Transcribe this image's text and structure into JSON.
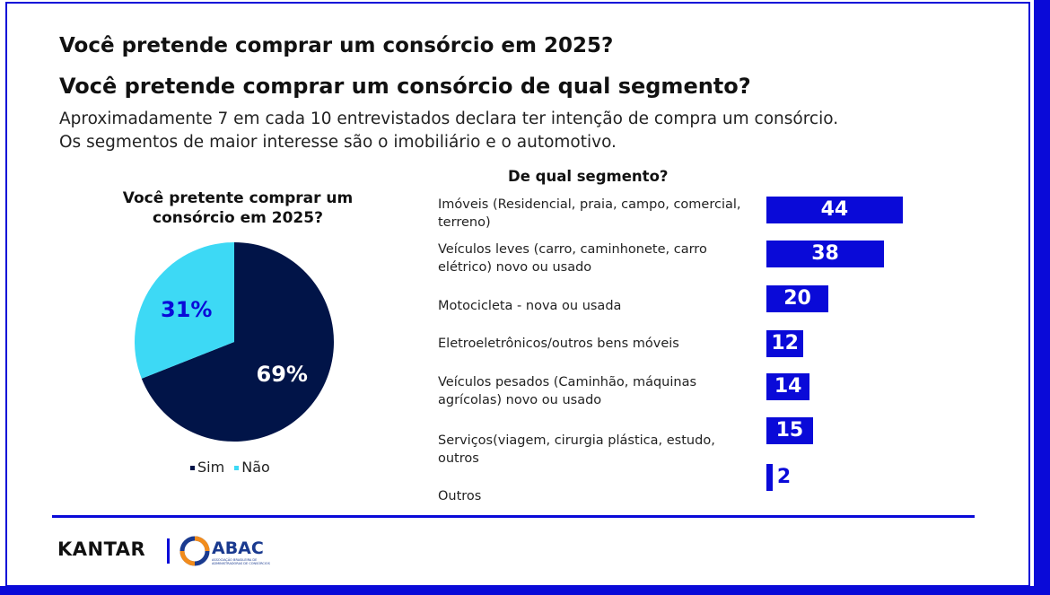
{
  "title_1": "Você pretende comprar um consórcio em 2025?",
  "title_2": "Você pretende comprar um consórcio de qual segmento?",
  "description": [
    "Aproximadamente 7 em cada 10 entrevistados declara ter intenção de compra um consórcio.",
    "Os segmentos de maior interesse são o imobiliário e o automotivo."
  ],
  "footer": {
    "kantar": "KANTAR",
    "abac": "ABAC",
    "abac_subtitle": "ASSOCIAÇÃO BRASILEIRA DE ADMINISTRADORAS DE CONSÓRCIOS"
  },
  "colors": {
    "accent": "#0a0ad8",
    "navy": "#011448",
    "cyan": "#3dd9f5"
  },
  "chart_data": [
    {
      "type": "pie",
      "title": "Você pretente comprar um consórcio em 2025?",
      "slices": [
        {
          "label": "Sim",
          "value": 69,
          "display": "69%",
          "color": "#011448",
          "label_color": "#ffffff"
        },
        {
          "label": "Não",
          "value": 31,
          "display": "31%",
          "color": "#3dd9f5",
          "label_color": "#0a0ad8"
        }
      ],
      "legend": "bottom"
    },
    {
      "type": "bar",
      "orientation": "horizontal",
      "title": "De qual segmento?",
      "categories": [
        "Imóveis (Residencial, praia, campo, comercial, terreno)",
        "Veículos leves (carro, caminhonete, carro elétrico) novo ou usado",
        "Motocicleta - nova ou usada",
        "Eletroeletrônicos/outros bens móveis",
        "Veículos pesados (Caminhão, máquinas agrícolas) novo ou usado",
        "Serviços(viagem, cirurgia plástica, estudo, outros",
        "Outros"
      ],
      "values": [
        44,
        38,
        20,
        12,
        14,
        15,
        2
      ],
      "color": "#0a0ad8"
    }
  ]
}
